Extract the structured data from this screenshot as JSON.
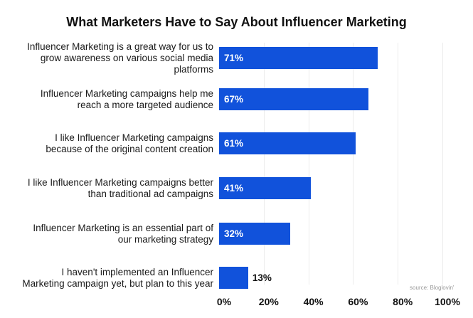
{
  "chart_data": {
    "type": "bar",
    "orientation": "horizontal",
    "title": "What Marketers Have to Say About Influencer Marketing",
    "categories": [
      "Influencer Marketing is a great way for us to grow awareness on various social media platforms",
      "Influencer Marketing campaigns help me reach a more targeted audience",
      "I like Influencer Marketing campaigns because of the original content creation",
      "I like Influencer Marketing campaigns better than traditional ad campaigns",
      "Influencer Marketing is an essential part of our marketing strategy",
      "I haven't implemented an Influencer Marketing campaign yet, but plan to this year"
    ],
    "category_lines": [
      [
        "Influencer Marketing is a great way for us to",
        "grow awareness on various social media",
        "platforms"
      ],
      [
        "Influencer Marketing campaigns help me",
        "reach a more targeted audience"
      ],
      [
        "I like Influencer Marketing campaigns",
        "because of the original content creation"
      ],
      [
        "I like Influencer Marketing campaigns better",
        "than traditional ad campaigns"
      ],
      [
        "Influencer Marketing is an essential part of",
        "our marketing strategy"
      ],
      [
        "I haven't implemented an Influencer",
        "Marketing campaign yet, but plan to this year"
      ]
    ],
    "values": [
      71,
      67,
      61,
      41,
      32,
      13
    ],
    "data_labels": [
      "71%",
      "67%",
      "61%",
      "41%",
      "32%",
      "13%"
    ],
    "xlim": [
      0,
      100
    ],
    "xticks": [
      "0%",
      "20%",
      "40%",
      "60%",
      "80%",
      "100%"
    ],
    "xlabel": "",
    "ylabel": "",
    "grid": true,
    "bar_color": "#1152DB",
    "source": "source: Bloglovin'"
  }
}
